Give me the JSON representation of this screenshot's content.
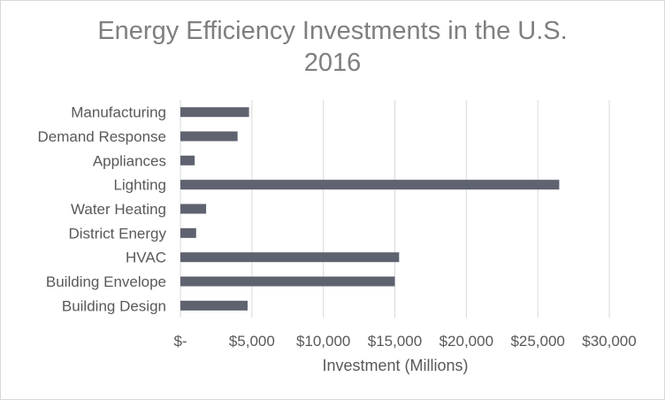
{
  "chart_data": {
    "type": "bar",
    "orientation": "horizontal",
    "title": "Energy Efficiency Investments in the U.S.",
    "subtitle": "2016",
    "xlabel": "Investment (Millions)",
    "ylabel": "",
    "categories": [
      "Manufacturing",
      "Demand Response",
      "Appliances",
      "Lighting",
      "Water Heating",
      "District Energy",
      "HVAC",
      "Building Envelope",
      "Building Design"
    ],
    "values": [
      4800,
      4000,
      1000,
      26500,
      1800,
      1100,
      15300,
      15000,
      4700
    ],
    "xlim": [
      0,
      30000
    ],
    "x_ticks": [
      0,
      5000,
      10000,
      15000,
      20000,
      25000,
      30000
    ],
    "x_tick_labels": [
      "$-",
      "$5,000",
      "$10,000",
      "$15,000",
      "$20,000",
      "$25,000",
      "$30,000"
    ],
    "grid": true,
    "legend": "none",
    "colors": {
      "bar": "#5f6370",
      "grid": "#d9d9d9",
      "text": "#595959",
      "title": "#7f7f7f"
    }
  }
}
